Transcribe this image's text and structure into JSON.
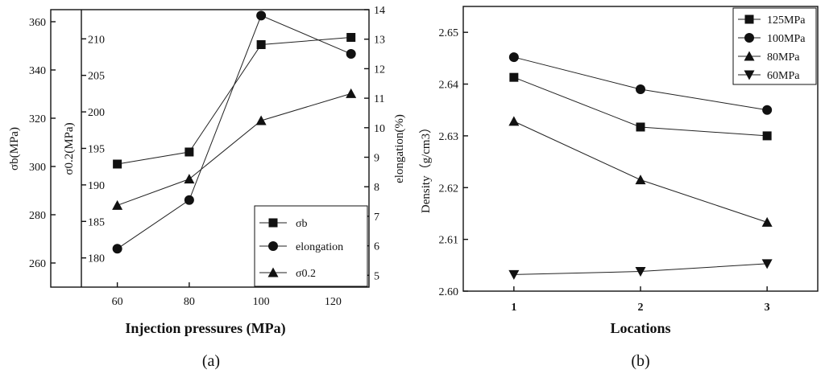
{
  "chart_data": [
    {
      "panel": "(a)",
      "type": "line",
      "xlabel": "Injection pressures (MPa)",
      "x": [
        60,
        80,
        100,
        125
      ],
      "xticks": [
        60,
        80,
        100,
        120
      ],
      "xlim": [
        50,
        130
      ],
      "axes": {
        "sigma_b": {
          "label": "σb(MPa)",
          "ylim": [
            250,
            365
          ],
          "ticks": [
            260,
            280,
            300,
            320,
            340,
            360
          ]
        },
        "sigma_02": {
          "label": "σ0.2(MPa)",
          "ylim": [
            176,
            214
          ],
          "ticks": [
            180,
            185,
            190,
            195,
            200,
            205,
            210
          ]
        },
        "elongation": {
          "label": "elongation(%)",
          "ylim": [
            4.6,
            14
          ],
          "ticks": [
            5,
            6,
            7,
            8,
            9,
            10,
            11,
            12,
            13,
            14
          ]
        }
      },
      "series": [
        {
          "name": "σb",
          "marker": "square",
          "axis": "sigma_b",
          "values": [
            301,
            306,
            350.5,
            353.5
          ]
        },
        {
          "name": "elongation",
          "marker": "circle",
          "axis": "elongation",
          "values": [
            5.9,
            7.55,
            13.8,
            12.5
          ]
        },
        {
          "name": "σ0.2",
          "marker": "triangle",
          "axis": "sigma_02",
          "values": [
            187.2,
            190.8,
            198.8,
            202.5
          ]
        }
      ],
      "legend": "bottom-right"
    },
    {
      "panel": "(b)",
      "type": "line",
      "xlabel": "Locations",
      "ylabel": "Density（g/cm3）",
      "categories": [
        1,
        2,
        3
      ],
      "xlim": [
        0.6,
        3.4
      ],
      "ylim": [
        2.6,
        2.655
      ],
      "yticks": [
        2.6,
        2.61,
        2.62,
        2.63,
        2.64,
        2.65
      ],
      "series": [
        {
          "name": "125MPa",
          "marker": "square",
          "values": [
            2.6413,
            2.6317,
            2.63
          ]
        },
        {
          "name": "100MPa",
          "marker": "circle",
          "values": [
            2.6452,
            2.639,
            2.635
          ]
        },
        {
          "name": "80MPa",
          "marker": "triangle",
          "values": [
            2.6328,
            2.6215,
            2.6133
          ]
        },
        {
          "name": "60MPa",
          "marker": "triangle-down",
          "values": [
            2.6032,
            2.6038,
            2.6053
          ]
        }
      ],
      "legend": "top-right"
    }
  ]
}
